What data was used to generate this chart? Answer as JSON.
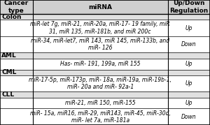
{
  "headers": [
    "Cancer\ntype",
    "miRNA",
    "Up/Down\nRegulation"
  ],
  "header_bg": "#d0d0d0",
  "cancer_bg": "#e0e0e0",
  "white": "#ffffff",
  "rows": [
    {
      "cancer": "Colon",
      "mirnas": [
        "miR-let 7g, miR-21, miR-20a, miR-17- 19 family, miR\n31, miR 135, miR-181b, and miR 200c",
        "miR-34, miR-let7, miR 143, miR 145, miR-133b, and\nmiR- 126"
      ],
      "regulation": [
        "Up",
        "Down"
      ]
    },
    {
      "cancer": "AML",
      "mirnas": [
        "Has- miR- 191, 199a, miR 155"
      ],
      "regulation": [
        "Up"
      ]
    },
    {
      "cancer": "CML",
      "mirnas": [
        "miR-17-5p, miR-173p, miR- 18a, miR-19a, miR-19b-1,\nmiR- 20a and miR- 92a-1"
      ],
      "regulation": [
        "Up"
      ]
    },
    {
      "cancer": "CLL",
      "mirnas": [
        "miR-21, miR 150, miR-155",
        "miR- 15a, miR16, miR-29, miR143, miR-45, miR-30d,\nmiR- let 7a, miR-181a"
      ],
      "regulation": [
        "Up",
        "Down"
      ]
    }
  ],
  "font_size": 5.5,
  "header_font_size": 6.5,
  "cancer_font_size": 6.5,
  "col_borders": [
    0.0,
    0.155,
    0.8,
    1.0
  ],
  "row_heights": {
    "header": 0.115,
    "cancer_label": 0.048,
    "single_mirna": 0.09,
    "double_mirna": 0.135
  }
}
